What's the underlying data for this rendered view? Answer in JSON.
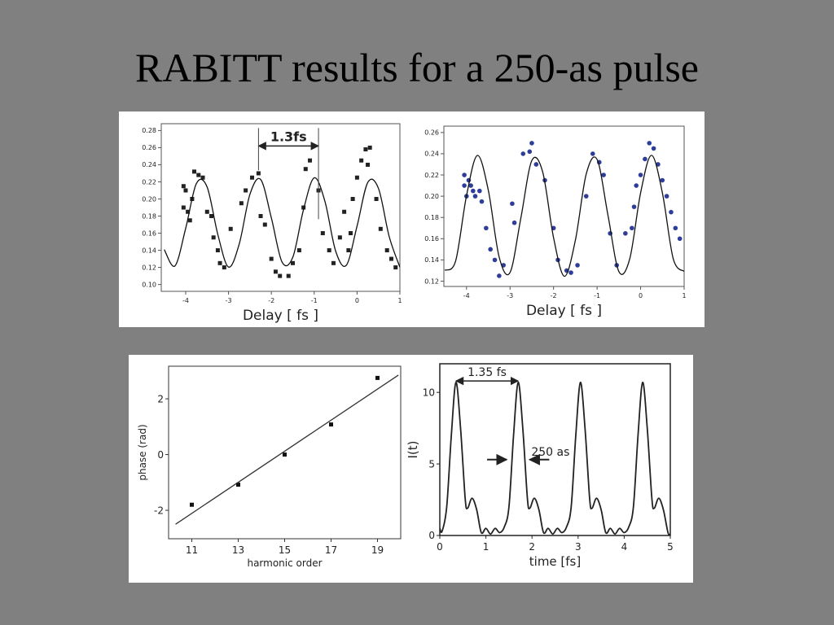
{
  "slide_title": "RABITT results for a 250-as pulse",
  "chart_data": [
    {
      "type": "scatter",
      "xlabel": "Delay [ fs ]",
      "xlim": [
        -4.57,
        1
      ],
      "xticks": [
        -4,
        -3,
        -2,
        -1,
        0,
        1
      ],
      "ylim": [
        0.092,
        0.288
      ],
      "yticks": [
        {
          "value": 0.1,
          "label": "0.10"
        },
        0.12,
        0.14,
        0.16,
        0.18,
        {
          "value": 0.2,
          "label": "0.20"
        },
        0.22,
        0.24,
        0.26,
        0.28
      ],
      "series": [
        {
          "style": "markers",
          "marker": "square",
          "color": "#222222",
          "x": [
            -4.05,
            -4.05,
            -4.0,
            -3.95,
            -3.9,
            -3.85,
            -3.8,
            -3.7,
            -3.6,
            -3.5,
            -3.4,
            -3.35,
            -3.25,
            -3.2,
            -3.1,
            -2.95,
            -2.7,
            -2.6,
            -2.45,
            -2.3,
            -2.25,
            -2.15,
            -2.0,
            -1.9,
            -1.8,
            -1.6,
            -1.5,
            -1.35,
            -1.25,
            -1.2,
            -1.1,
            -0.9,
            -0.8,
            -0.65,
            -0.55,
            -0.4,
            -0.3,
            -0.2,
            -0.15,
            -0.1,
            0.0,
            0.1,
            0.2,
            0.25,
            0.3,
            0.45,
            0.55,
            0.7,
            0.8,
            0.9
          ],
          "values": [
            0.215,
            0.19,
            0.21,
            0.185,
            0.175,
            0.2,
            0.232,
            0.228,
            0.225,
            0.185,
            0.18,
            0.155,
            0.14,
            0.125,
            0.12,
            0.165,
            0.195,
            0.21,
            0.225,
            0.23,
            0.18,
            0.17,
            0.13,
            0.115,
            0.11,
            0.11,
            0.125,
            0.14,
            0.19,
            0.235,
            0.245,
            0.21,
            0.16,
            0.14,
            0.125,
            0.155,
            0.185,
            0.14,
            0.16,
            0.2,
            0.225,
            0.245,
            0.258,
            0.24,
            0.26,
            0.2,
            0.165,
            0.14,
            0.13,
            0.12
          ]
        },
        {
          "style": "line",
          "color": "#111111",
          "x": [
            -4.5,
            -4.25,
            -4.0,
            -3.75,
            -3.5,
            -3.25,
            -3.0,
            -2.75,
            -2.5,
            -2.25,
            -2.0,
            -1.75,
            -1.5,
            -1.25,
            -1.0,
            -0.75,
            -0.5,
            -0.25,
            0,
            0.25,
            0.5,
            0.75,
            1.0
          ],
          "values": [
            0.1408,
            0.1217,
            0.1657,
            0.2181,
            0.214,
            0.1585,
            0.1204,
            0.1474,
            0.2055,
            0.2228,
            0.1778,
            0.1262,
            0.1318,
            0.1876,
            0.2247,
            0.1972,
            0.1391,
            0.1225,
            0.1683,
            0.2193,
            0.2123,
            0.1561,
            0.1202
          ]
        }
      ],
      "annotations": [
        {
          "text": "1.3fs",
          "x": [
            -2.3,
            -0.9
          ],
          "y": 0.262,
          "style": "span"
        }
      ]
    },
    {
      "type": "scatter",
      "xlabel": "Delay [ fs ]",
      "xlim": [
        -4.52,
        1
      ],
      "xticks": [
        -4,
        -3,
        -2,
        -1,
        0,
        1
      ],
      "ylim": [
        0.115,
        0.266
      ],
      "yticks": [
        0.12,
        0.14,
        0.16,
        0.18,
        {
          "value": 0.2,
          "label": "0.20"
        },
        0.22,
        0.24,
        0.26
      ],
      "series": [
        {
          "style": "markers",
          "marker": "circle",
          "color": "#2e3d99",
          "x": [
            -4.05,
            -4.05,
            -4.0,
            -3.95,
            -3.9,
            -3.85,
            -3.8,
            -3.7,
            -3.65,
            -3.55,
            -3.45,
            -3.35,
            -3.25,
            -3.15,
            -2.95,
            -2.9,
            -2.7,
            -2.55,
            -2.5,
            -2.4,
            -2.2,
            -2.0,
            -1.9,
            -1.7,
            -1.6,
            -1.45,
            -1.25,
            -1.1,
            -0.95,
            -0.85,
            -0.7,
            -0.55,
            -0.35,
            -0.2,
            -0.15,
            -0.1,
            0.0,
            0.1,
            0.2,
            0.3,
            0.4,
            0.5,
            0.6,
            0.7,
            0.8,
            0.9
          ],
          "values": [
            0.22,
            0.21,
            0.2,
            0.215,
            0.21,
            0.205,
            0.2,
            0.205,
            0.195,
            0.17,
            0.15,
            0.14,
            0.125,
            0.135,
            0.193,
            0.175,
            0.24,
            0.242,
            0.25,
            0.23,
            0.215,
            0.17,
            0.14,
            0.13,
            0.128,
            0.135,
            0.2,
            0.24,
            0.232,
            0.22,
            0.165,
            0.135,
            0.165,
            0.17,
            0.19,
            0.21,
            0.22,
            0.235,
            0.25,
            0.245,
            0.23,
            0.215,
            0.2,
            0.185,
            0.17,
            0.16
          ]
        },
        {
          "style": "line",
          "color": "#111111",
          "x": [
            -4.5,
            -4.25,
            -4.0,
            -3.75,
            -3.5,
            -3.25,
            -3.0,
            -2.75,
            -2.5,
            -2.25,
            -2.0,
            -1.75,
            -1.5,
            -1.25,
            -1.0,
            -0.75,
            -0.5,
            -0.25,
            0,
            0.25,
            0.5,
            0.75,
            1.0
          ],
          "values": [
            0.1302,
            0.139,
            0.2005,
            0.2384,
            0.2058,
            0.1427,
            0.1282,
            0.1798,
            0.2335,
            0.2228,
            0.1609,
            0.1246,
            0.1583,
            0.2208,
            0.2346,
            0.1821,
            0.1291,
            0.141,
            0.2032,
            0.2385,
            0.2032,
            0.141,
            0.1291
          ]
        }
      ]
    },
    {
      "type": "scatter",
      "xlabel": "harmonic order",
      "ylabel": "phase (rad)",
      "xlim": [
        10,
        20
      ],
      "xticks": [
        11,
        13,
        15,
        17,
        19
      ],
      "ylim": [
        -3.02,
        3.17
      ],
      "yticks": [
        -2,
        0,
        2
      ],
      "series": [
        {
          "style": "markers",
          "marker": "square",
          "color": "#111111",
          "x": [
            11,
            13,
            15,
            17,
            19
          ],
          "values": [
            -1.8,
            -1.08,
            0,
            1.08,
            2.75
          ]
        },
        {
          "style": "line",
          "color": "#333333",
          "x": [
            10.3,
            19.9
          ],
          "values": [
            -2.5,
            2.85
          ]
        }
      ]
    },
    {
      "type": "line",
      "xlabel": "time [fs]",
      "ylabel": "I(t)",
      "xlim": [
        0,
        5
      ],
      "xticks": [
        0,
        1,
        2,
        3,
        4,
        5
      ],
      "ylim": [
        0,
        12
      ],
      "yticks": [
        0,
        5,
        10
      ],
      "series": [
        {
          "style": "line",
          "color": "#222222",
          "x": [
            0,
            0.05,
            0.15,
            0.25,
            0.35,
            0.45,
            0.55,
            0.6,
            0.7,
            0.8,
            0.9,
            1.0,
            1.1,
            1.2,
            1.3,
            1.4,
            1.5,
            1.6,
            1.7,
            1.8,
            1.9,
            1.95,
            2.05,
            2.15,
            2.25,
            2.35,
            2.45,
            2.55,
            2.65,
            2.75,
            2.85,
            2.95,
            3.05,
            3.15,
            3.25,
            3.3,
            3.4,
            3.5,
            3.6,
            3.7,
            3.8,
            3.9,
            4.0,
            4.1,
            4.2,
            4.3,
            4.4,
            4.5,
            4.6,
            4.65,
            4.75,
            4.85,
            4.95,
            5.0
          ],
          "values": [
            0.5,
            0.3,
            2.0,
            7.0,
            10.7,
            7.5,
            2.6,
            1.9,
            2.6,
            1.8,
            0.2,
            0.5,
            0.1,
            0.5,
            0.2,
            0.6,
            2.0,
            7.0,
            10.7,
            7.5,
            2.6,
            1.9,
            2.6,
            1.8,
            0.2,
            0.5,
            0.1,
            0.5,
            0.2,
            0.6,
            2.0,
            7.0,
            10.7,
            7.5,
            2.6,
            1.9,
            2.6,
            1.8,
            0.2,
            0.5,
            0.1,
            0.5,
            0.2,
            0.6,
            2.0,
            7.0,
            10.7,
            7.5,
            2.6,
            1.9,
            2.6,
            1.8,
            0.2,
            0.1
          ]
        }
      ],
      "annotations": [
        {
          "text": "1.35 fs",
          "x": [
            0.35,
            1.7
          ],
          "y": 10.8,
          "style": "span"
        },
        {
          "text": "250 as",
          "x": [
            1.45,
            1.95
          ],
          "y": 5.3,
          "style": "inward"
        }
      ]
    }
  ]
}
